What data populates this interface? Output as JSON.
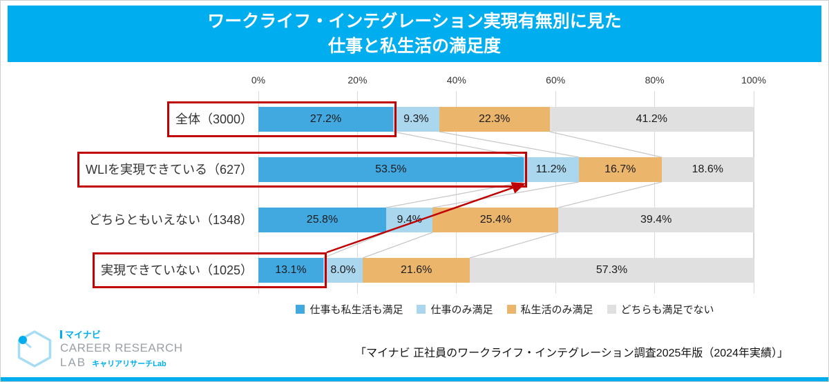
{
  "title": {
    "line1": "ワークライフ・インテグレーション実現有無別に見た",
    "line2": "仕事と私生活の満足度"
  },
  "chart_data": {
    "type": "bar",
    "orientation": "horizontal",
    "stacked": true,
    "title": "ワークライフ・インテグレーション実現有無別に見た 仕事と私生活の満足度",
    "x_ticks": [
      "0%",
      "20%",
      "40%",
      "60%",
      "80%",
      "100%"
    ],
    "xlim": [
      0,
      100
    ],
    "grid": true,
    "legend_position": "bottom",
    "connector_lines": true,
    "categories": [
      "全体（3000）",
      "WLIを実現できている（627）",
      "どちらともいえない（1348）",
      "実現できていない（1025）"
    ],
    "series": [
      {
        "name": "仕事も私生活も満足",
        "color": "#41A9E0",
        "values": [
          27.2,
          53.5,
          25.8,
          13.1
        ]
      },
      {
        "name": "仕事のみ満足",
        "color": "#ABD7EE",
        "values": [
          9.3,
          11.2,
          9.4,
          8.0
        ]
      },
      {
        "name": "私生活のみ満足",
        "color": "#EBB56B",
        "values": [
          22.3,
          16.7,
          25.4,
          21.6
        ]
      },
      {
        "name": "どちらも満足でない",
        "color": "#E0E0E0",
        "values": [
          41.2,
          18.6,
          39.4,
          57.3
        ]
      }
    ],
    "value_suffix": "%"
  },
  "annotations": {
    "color": "#C00000",
    "boxes": [
      {
        "row": 0,
        "through_series": 0
      },
      {
        "row": 1,
        "through_series": 0
      },
      {
        "row": 3,
        "through_series": 0
      }
    ],
    "arrow": {
      "from_row": 3,
      "to_row": 1,
      "to_series": 0
    }
  },
  "footer": {
    "source": "「マイナビ 正社員のワークライフ・インテグレーション調査2025年版（2024年実績）」"
  },
  "logo": {
    "brand": "マイナビ",
    "line1": "CAREER RESEARCH",
    "line2": "LAB",
    "sub": "キャリアリサーチLab"
  },
  "theme": {
    "header_bg": "#00AEEF",
    "accent": "#00AEEF",
    "logo_gray": "#9AA0A8",
    "grid_color": "#D9D9D9",
    "connector_color": "#C6C6C6"
  }
}
